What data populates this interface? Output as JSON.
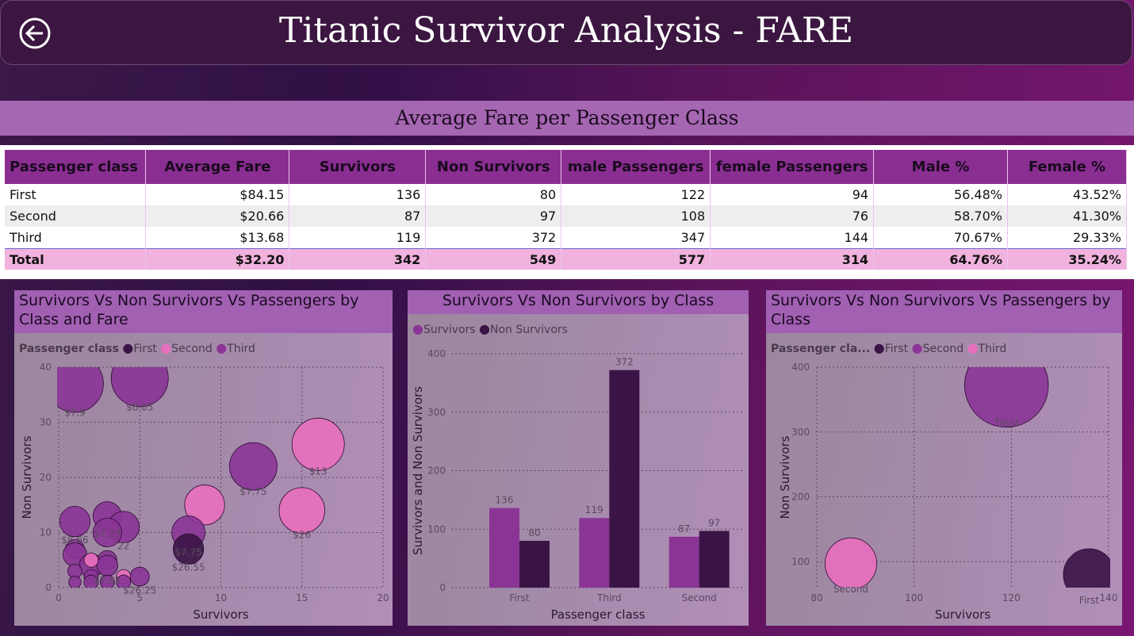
{
  "header": {
    "title": "Titanic Survivor Analysis - FARE",
    "back_icon": "back-arrow-icon"
  },
  "banner": {
    "title": "Average Fare per Passenger Class"
  },
  "table": {
    "columns": [
      "Passenger class",
      "Average Fare",
      "Survivors",
      "Non Survivors",
      "male Passengers",
      "female Passengers",
      "Male %",
      "Female %"
    ],
    "rows": [
      [
        "First",
        "$84.15",
        "136",
        "80",
        "122",
        "94",
        "56.48%",
        "43.52%"
      ],
      [
        "Second",
        "$20.66",
        "87",
        "97",
        "108",
        "76",
        "58.70%",
        "41.30%"
      ],
      [
        "Third",
        "$13.68",
        "119",
        "372",
        "347",
        "144",
        "70.67%",
        "29.33%"
      ]
    ],
    "total": [
      "Total",
      "$32.20",
      "342",
      "549",
      "577",
      "314",
      "64.76%",
      "35.24%"
    ]
  },
  "colors": {
    "first": "#3a1446",
    "second": "#e96fbe",
    "third": "#8a3596",
    "survivors": "#8a3596",
    "non_survivors": "#3a1446"
  },
  "chart_data": [
    {
      "type": "scatter",
      "title": "Survivors Vs Non Survivors Vs Passengers by Class and Fare",
      "xlabel": "Survivors",
      "ylabel": "Non Survivors",
      "xlim": [
        0,
        20
      ],
      "ylim": [
        0,
        40
      ],
      "xticks": [
        "0",
        "5",
        "10",
        "15",
        "20"
      ],
      "yticks": [
        "0",
        "10",
        "20",
        "30",
        "40"
      ],
      "legend_title": "Passenger class",
      "legend": [
        "First",
        "Second",
        "Third"
      ],
      "points": [
        {
          "x": 1,
          "y": 37,
          "size": 6,
          "cls": "Third",
          "label": "$7.9"
        },
        {
          "x": 5,
          "y": 38,
          "size": 6,
          "cls": "Third",
          "label": "$8.05"
        },
        {
          "x": 12,
          "y": 22,
          "size": 5,
          "cls": "Third",
          "label": "$7.75"
        },
        {
          "x": 16,
          "y": 26,
          "size": 5.5,
          "cls": "Second",
          "label": "$13"
        },
        {
          "x": 9,
          "y": 15,
          "size": 4.2,
          "cls": "Second",
          "label": ""
        },
        {
          "x": 15,
          "y": 14,
          "size": 4.8,
          "cls": "Second",
          "label": "$26"
        },
        {
          "x": 1,
          "y": 12,
          "size": 3.2,
          "cls": "Third",
          "label": "$8.66"
        },
        {
          "x": 3,
          "y": 13,
          "size": 3,
          "cls": "Third",
          "label": "$7.23"
        },
        {
          "x": 4,
          "y": 11,
          "size": 3.3,
          "cls": "Third",
          "label": "22"
        },
        {
          "x": 3,
          "y": 10,
          "size": 3,
          "cls": "Third",
          "label": ""
        },
        {
          "x": 8,
          "y": 10,
          "size": 3.5,
          "cls": "Third",
          "label": "$7.75"
        },
        {
          "x": 8,
          "y": 7,
          "size": 3.2,
          "cls": "First",
          "label": "$26.55"
        },
        {
          "x": 1,
          "y": 7,
          "size": 2,
          "cls": "Third",
          "label": ""
        },
        {
          "x": 1,
          "y": 6,
          "size": 2.5,
          "cls": "Third",
          "label": ""
        },
        {
          "x": 2,
          "y": 4,
          "size": 2.5,
          "cls": "Third",
          "label": ""
        },
        {
          "x": 3,
          "y": 5,
          "size": 2,
          "cls": "Third",
          "label": ""
        },
        {
          "x": 3,
          "y": 4,
          "size": 2.2,
          "cls": "Third",
          "label": "$7.92"
        },
        {
          "x": 2,
          "y": 5,
          "size": 1.5,
          "cls": "Second",
          "label": ""
        },
        {
          "x": 4,
          "y": 2,
          "size": 1.5,
          "cls": "Second",
          "label": ""
        },
        {
          "x": 1,
          "y": 3,
          "size": 1.5,
          "cls": "Third",
          "label": ""
        },
        {
          "x": 1,
          "y": 1,
          "size": 1.3,
          "cls": "Third",
          "label": ""
        },
        {
          "x": 2,
          "y": 2,
          "size": 1.5,
          "cls": "Third",
          "label": ""
        },
        {
          "x": 2,
          "y": 1,
          "size": 1.5,
          "cls": "Third",
          "label": ""
        },
        {
          "x": 3,
          "y": 1,
          "size": 1.5,
          "cls": "Third",
          "label": ""
        },
        {
          "x": 4,
          "y": 1,
          "size": 1.5,
          "cls": "Third",
          "label": ""
        },
        {
          "x": 5,
          "y": 2,
          "size": 2,
          "cls": "Third",
          "label": "$26.25"
        }
      ]
    },
    {
      "type": "bar",
      "title": "Survivors Vs Non Survivors by Class",
      "xlabel": "Passenger class",
      "ylabel": "Survivors and Non Survivors",
      "ylim": [
        0,
        400
      ],
      "yticks": [
        "0",
        "100",
        "200",
        "300",
        "400"
      ],
      "categories": [
        "First",
        "Third",
        "Second"
      ],
      "series": [
        {
          "name": "Survivors",
          "values": [
            136,
            119,
            87
          ]
        },
        {
          "name": "Non Survivors",
          "values": [
            80,
            372,
            97
          ]
        }
      ]
    },
    {
      "type": "scatter",
      "title": "Survivors Vs Non Survivors Vs Passengers by Class",
      "xlabel": "Survivors",
      "ylabel": "Non Survivors",
      "xlim": [
        80,
        140
      ],
      "ylim": [
        60,
        400
      ],
      "xticks": [
        "80",
        "100",
        "120",
        "140"
      ],
      "yticks": [
        "100",
        "200",
        "300",
        "400"
      ],
      "legend_title": "Passenger cla...",
      "legend": [
        "First",
        "Second",
        "Third"
      ],
      "points": [
        {
          "x": 119,
          "y": 372,
          "size": 6,
          "cls": "Third",
          "label": "Third"
        },
        {
          "x": 87,
          "y": 97,
          "size": 3.7,
          "cls": "Second",
          "label": "Second"
        },
        {
          "x": 136,
          "y": 80,
          "size": 3.7,
          "cls": "First",
          "label": "First"
        }
      ]
    }
  ]
}
